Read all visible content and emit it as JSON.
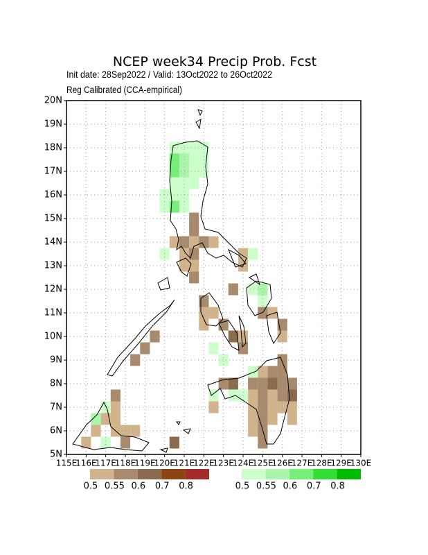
{
  "header": {
    "title": "NCEP week34 Precip Prob. Fcst",
    "subtitle_1": "Init date: 28Sep2022 / Valid: 13Oct2022 to 26Oct2022",
    "subtitle_2": "Reg Calibrated (CCA-empirical)"
  },
  "map": {
    "lonlim": [
      115,
      130
    ],
    "latlim": [
      5,
      20
    ],
    "cell_size": 0.5,
    "grid": true,
    "xticks": [
      {
        "value": 115,
        "label": "115E"
      },
      {
        "value": 116,
        "label": "116E"
      },
      {
        "value": 117,
        "label": "117E"
      },
      {
        "value": 118,
        "label": "118E"
      },
      {
        "value": 119,
        "label": "119E"
      },
      {
        "value": 120,
        "label": "120E"
      },
      {
        "value": 121,
        "label": "121E"
      },
      {
        "value": 122,
        "label": "122E"
      },
      {
        "value": 123,
        "label": "123E"
      },
      {
        "value": 124,
        "label": "124E"
      },
      {
        "value": 125,
        "label": "125E"
      },
      {
        "value": 126,
        "label": "126E"
      },
      {
        "value": 127,
        "label": "127E"
      },
      {
        "value": 128,
        "label": "128E"
      },
      {
        "value": 129,
        "label": "129E"
      },
      {
        "value": 130,
        "label": "130E"
      }
    ],
    "yticks": [
      {
        "value": 5,
        "label": "5N"
      },
      {
        "value": 6,
        "label": "6N"
      },
      {
        "value": 7,
        "label": "7N"
      },
      {
        "value": 8,
        "label": "8N"
      },
      {
        "value": 9,
        "label": "9N"
      },
      {
        "value": 10,
        "label": "10N"
      },
      {
        "value": 11,
        "label": "11N"
      },
      {
        "value": 12,
        "label": "12N"
      },
      {
        "value": 13,
        "label": "13N"
      },
      {
        "value": 14,
        "label": "14N"
      },
      {
        "value": 15,
        "label": "15N"
      },
      {
        "value": 16,
        "label": "16N"
      },
      {
        "value": 17,
        "label": "17N"
      },
      {
        "value": 18,
        "label": "18N"
      },
      {
        "value": 19,
        "label": "19N"
      },
      {
        "value": 20,
        "label": "20N"
      }
    ],
    "below_legend": {
      "colors": [
        "#d2b48c",
        "#a88a6c",
        "#8b6b4e",
        "#8b4513",
        "#a52a2a"
      ],
      "labels": [
        0.5,
        0.55,
        0.6,
        0.7,
        0.8
      ]
    },
    "above_legend": {
      "colors": [
        "#ccffcc",
        "#aaf5aa",
        "#77ee77",
        "#33dd33",
        "#00bb00"
      ],
      "labels": [
        0.5,
        0.55,
        0.6,
        0.7,
        0.8
      ]
    },
    "below_cells": [
      [
        121.25,
        14.25,
        0.55
      ],
      [
        121.25,
        14.75,
        0.55
      ],
      [
        120.25,
        13.75,
        0.5
      ],
      [
        120.75,
        13.75,
        0.55
      ],
      [
        121.25,
        13.75,
        0.5
      ],
      [
        121.75,
        13.75,
        0.55
      ],
      [
        122.25,
        13.75,
        0.5
      ],
      [
        120.75,
        13.25,
        0.5
      ],
      [
        121.25,
        13.25,
        0.55
      ],
      [
        120.75,
        12.75,
        0.5
      ],
      [
        121.25,
        12.75,
        0.5
      ],
      [
        121.25,
        12.25,
        0.55
      ],
      [
        123.75,
        13.25,
        0.5
      ],
      [
        123.75,
        12.75,
        0.5
      ],
      [
        123.25,
        11.75,
        0.55
      ],
      [
        121.75,
        11.25,
        0.55
      ],
      [
        121.75,
        10.75,
        0.5
      ],
      [
        122.25,
        10.75,
        0.5
      ],
      [
        121.75,
        10.25,
        0.5
      ],
      [
        122.75,
        10.25,
        0.55
      ],
      [
        123.25,
        9.75,
        0.6
      ],
      [
        123.75,
        9.75,
        0.5
      ],
      [
        123.75,
        9.25,
        0.55
      ],
      [
        124.75,
        10.75,
        0.55
      ],
      [
        125.25,
        10.75,
        0.5
      ],
      [
        125.75,
        10.25,
        0.55
      ],
      [
        125.75,
        9.75,
        0.5
      ],
      [
        119.25,
        9.75,
        0.55
      ],
      [
        118.75,
        9.25,
        0.55
      ],
      [
        118.25,
        8.75,
        0.55
      ],
      [
        122.75,
        7.75,
        0.55
      ],
      [
        123.25,
        7.75,
        0.6
      ],
      [
        124.25,
        7.75,
        0.55
      ],
      [
        124.75,
        7.75,
        0.55
      ],
      [
        125.25,
        7.75,
        0.6
      ],
      [
        125.75,
        7.75,
        0.55
      ],
      [
        126.25,
        7.75,
        0.55
      ],
      [
        125.25,
        8.25,
        0.55
      ],
      [
        125.75,
        8.25,
        0.55
      ],
      [
        125.75,
        8.75,
        0.55
      ],
      [
        124.75,
        8.25,
        0.5
      ],
      [
        124.25,
        7.25,
        0.5
      ],
      [
        124.75,
        7.25,
        0.55
      ],
      [
        125.25,
        7.25,
        0.5
      ],
      [
        125.75,
        7.25,
        0.55
      ],
      [
        126.25,
        7.25,
        0.6
      ],
      [
        126.25,
        6.75,
        0.5
      ],
      [
        124.25,
        6.75,
        0.5
      ],
      [
        124.75,
        6.75,
        0.55
      ],
      [
        125.25,
        6.75,
        0.5
      ],
      [
        125.75,
        6.75,
        0.5
      ],
      [
        126.25,
        6.25,
        0.5
      ],
      [
        124.25,
        6.25,
        0.5
      ],
      [
        124.75,
        6.25,
        0.55
      ],
      [
        125.25,
        6.25,
        0.5
      ],
      [
        124.25,
        5.75,
        0.5
      ],
      [
        124.75,
        5.75,
        0.55
      ],
      [
        124.75,
        5.25,
        0.55
      ],
      [
        122.25,
        6.75,
        0.5
      ],
      [
        116.25,
        5.75,
        0.5
      ],
      [
        116.75,
        6.25,
        0.5
      ],
      [
        117.25,
        6.75,
        0.5
      ],
      [
        117.25,
        7.25,
        0.55
      ],
      [
        117.25,
        6.25,
        0.5
      ],
      [
        117.25,
        5.75,
        0.5
      ],
      [
        117.75,
        5.75,
        0.5
      ],
      [
        118.25,
        5.75,
        0.5
      ],
      [
        116.25,
        6.25,
        0.5
      ],
      [
        115.75,
        5.25,
        0.5
      ],
      [
        117.75,
        5.25,
        0.55
      ],
      [
        120.25,
        5.25,
        0.6
      ]
    ],
    "above_cells": [
      [
        120.25,
        17.75,
        0.5
      ],
      [
        120.75,
        17.75,
        0.5
      ],
      [
        121.25,
        17.75,
        0.5
      ],
      [
        121.75,
        17.75,
        0.5
      ],
      [
        120.25,
        17.25,
        0.6
      ],
      [
        120.75,
        17.25,
        0.55
      ],
      [
        121.25,
        17.25,
        0.5
      ],
      [
        121.75,
        17.25,
        0.5
      ],
      [
        120.25,
        16.75,
        0.6
      ],
      [
        120.75,
        16.75,
        0.55
      ],
      [
        121.25,
        16.75,
        0.5
      ],
      [
        121.75,
        16.75,
        0.5
      ],
      [
        120.25,
        16.25,
        0.5
      ],
      [
        120.75,
        16.25,
        0.5
      ],
      [
        121.25,
        16.25,
        0.5
      ],
      [
        119.75,
        15.75,
        0.5
      ],
      [
        120.25,
        15.75,
        0.5
      ],
      [
        120.75,
        15.75,
        0.5
      ],
      [
        119.75,
        15.25,
        0.5
      ],
      [
        120.25,
        15.25,
        0.6
      ],
      [
        120.75,
        15.25,
        0.5
      ],
      [
        119.75,
        13.25,
        0.5
      ],
      [
        124.25,
        13.25,
        0.5
      ],
      [
        124.25,
        11.75,
        0.5
      ],
      [
        124.75,
        11.75,
        0.55
      ],
      [
        124.75,
        11.25,
        0.5
      ],
      [
        122.25,
        9.25,
        0.5
      ],
      [
        122.75,
        8.75,
        0.5
      ],
      [
        123.25,
        7.25,
        0.5
      ],
      [
        123.75,
        7.25,
        0.5
      ],
      [
        122.25,
        7.25,
        0.5
      ],
      [
        124.25,
        8.25,
        0.5
      ],
      [
        116.75,
        6.75,
        0.5
      ],
      [
        116.25,
        6.25,
        0.55
      ],
      [
        116.75,
        5.25,
        0.5
      ]
    ]
  },
  "legend": {}
}
